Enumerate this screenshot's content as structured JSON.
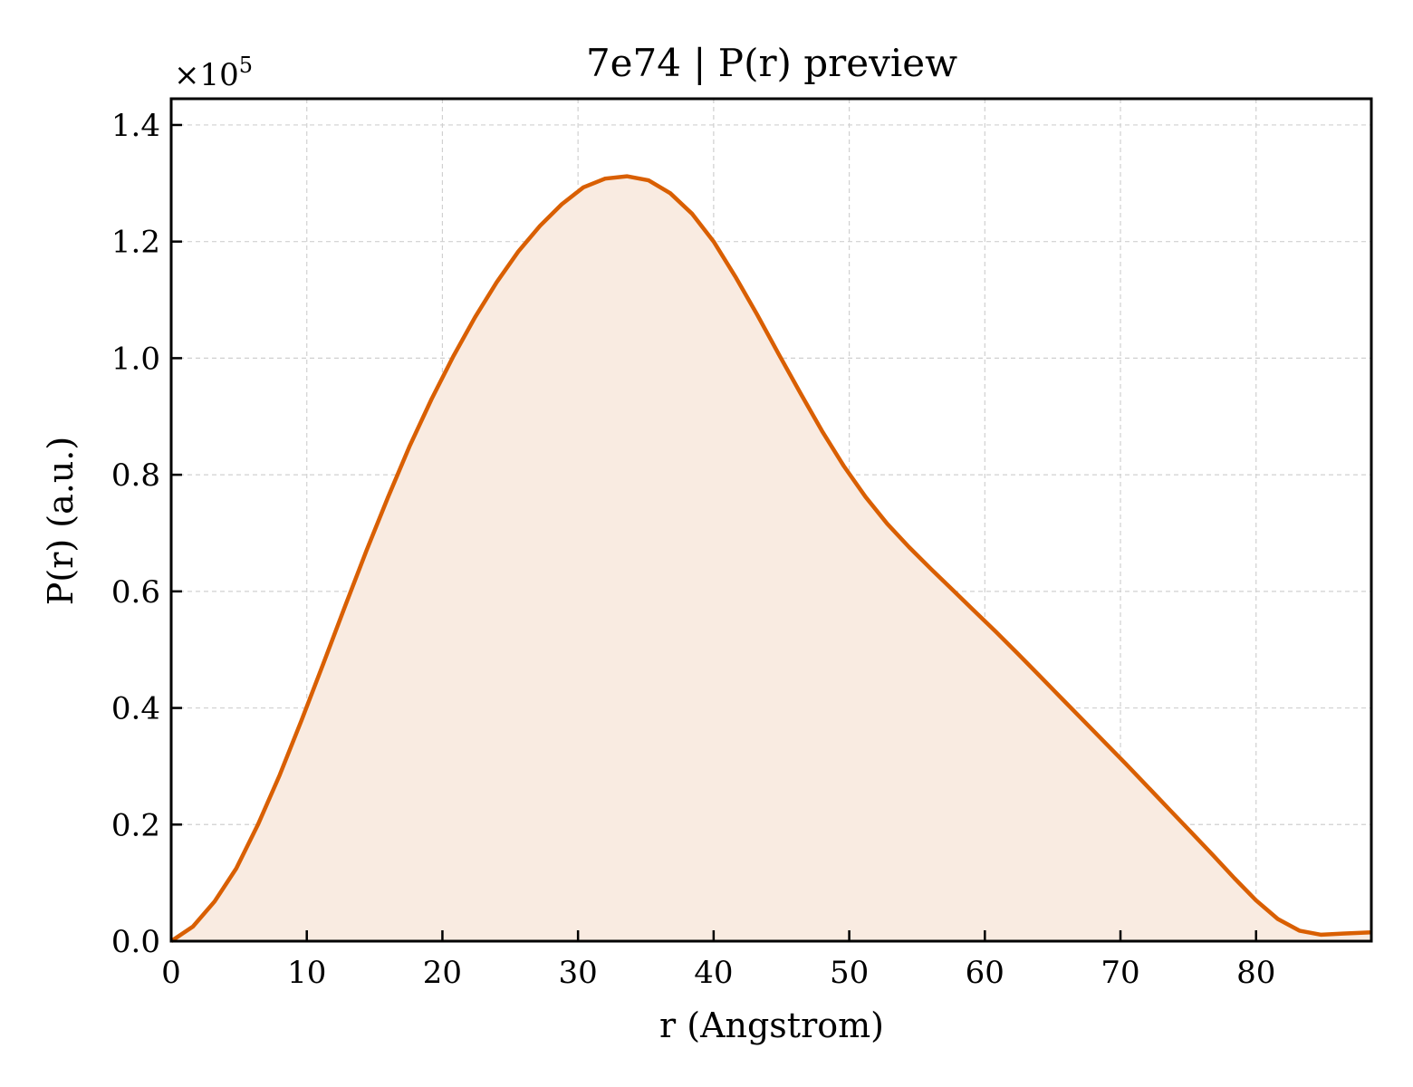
{
  "chart_data": {
    "type": "area",
    "title": "7e74 | P(r) preview",
    "xlabel": "r (Angstrom)",
    "ylabel": "P(r) (a.u.)",
    "y_multiplier_label": "×10",
    "y_multiplier_exp": "5",
    "xlim": [
      0,
      88.5
    ],
    "ylim": [
      0,
      1.445
    ],
    "xticks": [
      0,
      10,
      20,
      30,
      40,
      50,
      60,
      70,
      80
    ],
    "xtick_labels": [
      "0",
      "10",
      "20",
      "30",
      "40",
      "50",
      "60",
      "70",
      "80"
    ],
    "yticks": [
      0,
      0.2,
      0.4,
      0.6,
      0.8,
      1.0,
      1.2,
      1.4
    ],
    "ytick_labels": [
      "0.0",
      "0.2",
      "0.4",
      "0.6",
      "0.8",
      "1.0",
      "1.2",
      "1.4"
    ],
    "grid": true,
    "line_color": "#d95f02",
    "fill_color": "#f9ebe1",
    "series": [
      {
        "x": [
          0,
          1.6,
          3.2,
          4.8,
          6.4,
          8.0,
          9.6,
          11.2,
          12.8,
          14.4,
          16.0,
          17.6,
          19.2,
          20.8,
          22.4,
          24.0,
          25.6,
          27.2,
          28.8,
          30.4,
          32.0,
          33.6,
          35.2,
          36.8,
          38.4,
          40.0,
          41.6,
          43.2,
          44.8,
          46.4,
          48.0,
          49.6,
          51.2,
          52.8,
          54.4,
          56.0,
          57.6,
          59.2,
          60.8,
          62.4,
          64.0,
          65.6,
          67.2,
          68.8,
          70.4,
          72.0,
          73.6,
          75.2,
          76.8,
          78.4,
          80.0,
          81.6,
          83.2,
          84.8,
          86.4,
          88.5
        ],
        "y": [
          0.0,
          0.025,
          0.068,
          0.125,
          0.2,
          0.285,
          0.378,
          0.475,
          0.573,
          0.67,
          0.762,
          0.85,
          0.93,
          1.003,
          1.07,
          1.13,
          1.183,
          1.227,
          1.264,
          1.293,
          1.308,
          1.312,
          1.305,
          1.283,
          1.248,
          1.2,
          1.14,
          1.075,
          1.007,
          0.94,
          0.875,
          0.815,
          0.762,
          0.716,
          0.676,
          0.639,
          0.603,
          0.567,
          0.531,
          0.494,
          0.456,
          0.418,
          0.38,
          0.342,
          0.304,
          0.265,
          0.226,
          0.187,
          0.148,
          0.108,
          0.07,
          0.038,
          0.018,
          0.011,
          0.013,
          0.015
        ]
      }
    ]
  }
}
